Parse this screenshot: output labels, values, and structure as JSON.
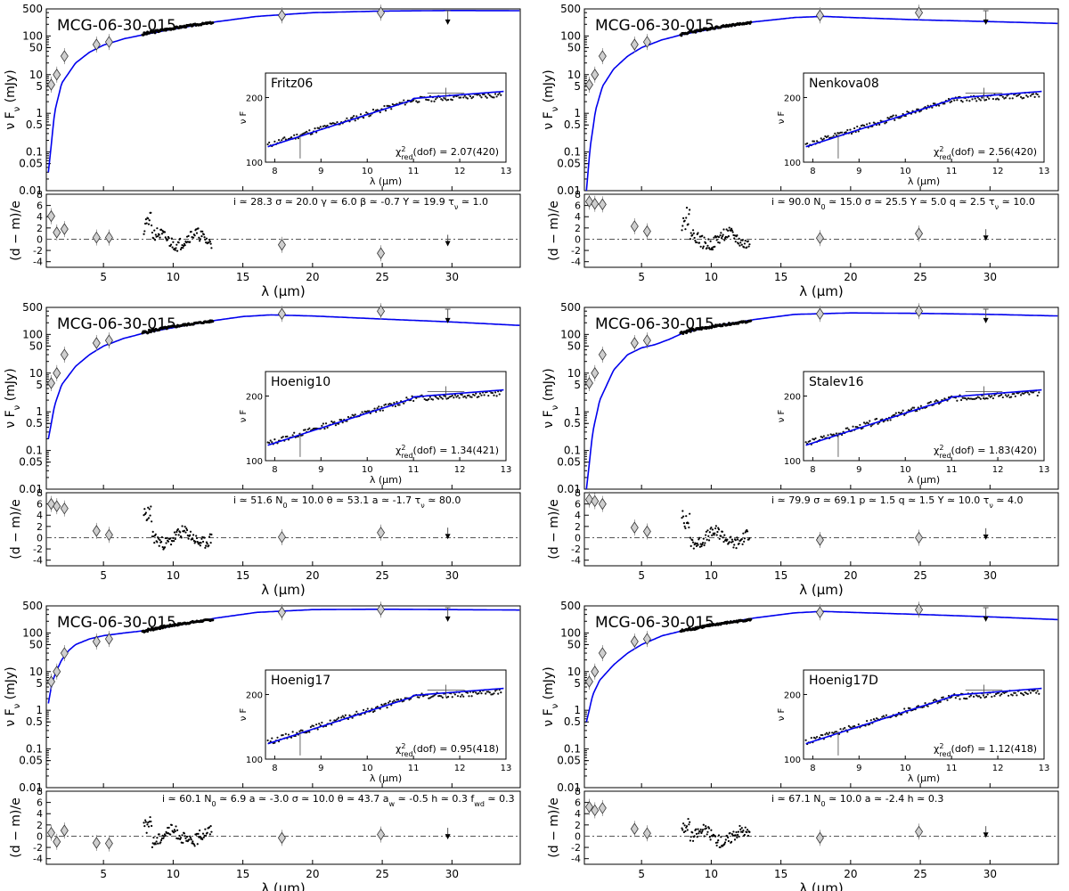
{
  "figure": {
    "object": "MCG-06-30-015",
    "top_ylabel": "ν F",
    "top_ylabel_sub": "ν",
    "top_ylabel_unit": " (mJy)",
    "res_ylabel": "(d − m)/e",
    "xlabel": "λ (μm)",
    "inset_xlabel": "λ (μm)",
    "inset_ylabel": "ν F",
    "chi_label": "χ",
    "chi_sup": "2",
    "chi_sub": "red",
    "chi_dof": "(dof) = "
  },
  "chart_data": [
    {
      "type": "line",
      "model": "Fritz06",
      "chi2": "2.07(420)",
      "params": "i ≃ 28.3   σ ≃ 20.0   γ ≃ 6.0    β ≃ -0.7   Y ≃ 19.9   τ_ν ≃ 1.0",
      "curve": {
        "x": [
          1.05,
          1.5,
          2,
          3,
          4,
          5,
          6.5,
          8,
          10,
          13,
          16,
          20,
          25,
          30,
          35
        ],
        "y": [
          0.03,
          1.1,
          6,
          20,
          38,
          58,
          85,
          110,
          150,
          230,
          320,
          400,
          440,
          455,
          450
        ]
      },
      "residuals": [
        4.1,
        1.2,
        1.8,
        0.3,
        0.3,
        -1.0,
        -2.5,
        -0.8
      ]
    },
    {
      "type": "line",
      "model": "Nenkova08",
      "chi2": "2.56(420)",
      "params": "i ≃ 90.0   N_0 ≃ 15.0  σ ≃ 25.5   Y ≃ 5.0    q ≃ 2.5    τ_ν ≃ 10.0",
      "curve": {
        "x": [
          1.05,
          1.3,
          1.7,
          2.2,
          3,
          4,
          5,
          6.5,
          8,
          10,
          13,
          16,
          18,
          20,
          25,
          30,
          35
        ],
        "y": [
          0.01,
          0.12,
          1.2,
          5,
          14,
          30,
          50,
          80,
          110,
          150,
          230,
          300,
          320,
          300,
          260,
          235,
          210
        ]
      },
      "residuals": [
        6.7,
        6.3,
        6.2,
        2.3,
        1.4,
        0.2,
        1.0,
        0.2
      ]
    },
    {
      "type": "line",
      "model": "Hoenig10",
      "chi2": "1.34(421)",
      "params": "i ≃ 51.6   N_0 ≃ 10.0  θ ≃ 53.1   a ≃ -1.7   τ_ν ≃ 80.0",
      "curve": {
        "x": [
          1.05,
          1.5,
          2,
          3,
          4,
          5,
          6.5,
          8,
          10,
          13,
          15,
          17,
          20,
          25,
          30,
          35
        ],
        "y": [
          0.2,
          1.5,
          5,
          15,
          30,
          50,
          80,
          110,
          150,
          230,
          290,
          320,
          300,
          250,
          210,
          170
        ]
      },
      "residuals": [
        6.0,
        5.6,
        5.2,
        1.2,
        0.5,
        0.1,
        0.9,
        0.2
      ]
    },
    {
      "type": "line",
      "model": "Stalev16",
      "chi2": "1.83(420)",
      "params": "i ≃ 79.9   σ ≃ 69.1   p ≃ 1.5    q ≃ 1.5    Y ≃ 10.0   τ_ν ≃ 4.0",
      "curve": {
        "x": [
          1.05,
          1.5,
          2,
          3,
          4,
          5,
          6,
          7,
          8,
          10,
          13,
          16,
          20,
          25,
          30,
          35
        ],
        "y": [
          0.01,
          0.3,
          2,
          12,
          30,
          45,
          55,
          75,
          110,
          160,
          240,
          330,
          360,
          350,
          330,
          300
        ]
      },
      "residuals": [
        6.8,
        6.5,
        6.0,
        1.8,
        1.1,
        -0.4,
        0.0,
        0.1
      ]
    },
    {
      "type": "line",
      "model": "Hoenig17",
      "chi2": "0.95(418)",
      "params": "i ≃ 60.1   N_0 ≃ 6.9   a ≃ -3.0   σ ≃ 10.0   θ ≃ 43.7   a_w ≃ -0.5  h ≃ 0.3    f_wd ≃ 0.3",
      "curve": {
        "x": [
          1.05,
          1.3,
          1.6,
          2,
          2.5,
          3,
          4,
          5,
          6.5,
          8,
          10,
          13,
          16,
          20,
          25,
          30,
          35
        ],
        "y": [
          1.5,
          5,
          10,
          20,
          35,
          50,
          70,
          85,
          100,
          115,
          150,
          240,
          340,
          400,
          410,
          400,
          390
        ]
      },
      "residuals": [
        0.6,
        -1.0,
        1.0,
        -1.2,
        -1.3,
        -0.3,
        0.3,
        -0.1
      ]
    },
    {
      "type": "line",
      "model": "Hoenig17D",
      "chi2": "1.12(418)",
      "params": "i ≃ 67.1   N_0 ≃ 10.0  a ≃ -2.4   h ≃ 0.3",
      "curve": {
        "x": [
          1.05,
          1.5,
          2,
          3,
          4,
          5,
          6.5,
          8,
          10,
          13,
          16,
          18,
          20,
          25,
          30,
          35
        ],
        "y": [
          0.5,
          2.5,
          6,
          15,
          30,
          50,
          85,
          115,
          160,
          240,
          330,
          360,
          340,
          300,
          260,
          220
        ]
      },
      "residuals": [
        5.2,
        4.6,
        5.0,
        1.3,
        0.5,
        -0.3,
        0.8,
        0.2
      ]
    }
  ],
  "data_points": {
    "x": [
      1.25,
      1.65,
      2.2,
      4.5,
      5.4,
      17.8,
      24.9
    ],
    "y": [
      5.5,
      10,
      30,
      60,
      70,
      340,
      400
    ],
    "upper_limit": {
      "x": 29.7,
      "y": 240
    }
  },
  "axes": {
    "xlim": [
      0.9,
      34.9
    ],
    "ylim_flux": [
      0.01,
      500
    ],
    "yticks_flux": [
      500,
      100,
      50,
      10,
      5,
      1,
      0.5,
      0.1,
      0.05,
      0.01
    ],
    "ytick_labels_flux": [
      "500",
      "100",
      "50",
      "10",
      "5",
      "1",
      "0.5",
      "0.1",
      "0.05",
      "0.01"
    ],
    "xticks": [
      5,
      10,
      15,
      20,
      25,
      30
    ],
    "xtick_labels": [
      "5",
      "10",
      "15",
      "20",
      "25",
      "30"
    ],
    "inset_xlim": [
      7.8,
      13
    ],
    "inset_ylim": [
      100,
      260
    ],
    "inset_xticks": [
      8,
      9,
      10,
      11,
      12,
      13
    ],
    "inset_xtick_labels": [
      "8",
      "9",
      "10",
      "11",
      "12",
      "13"
    ],
    "inset_yticks": [
      100,
      200
    ],
    "inset_ytick_labels": [
      "100",
      "200"
    ]
  },
  "colors": {
    "model": "#0000ee",
    "points": "#cfcfcf",
    "spectrum": "#000000"
  }
}
